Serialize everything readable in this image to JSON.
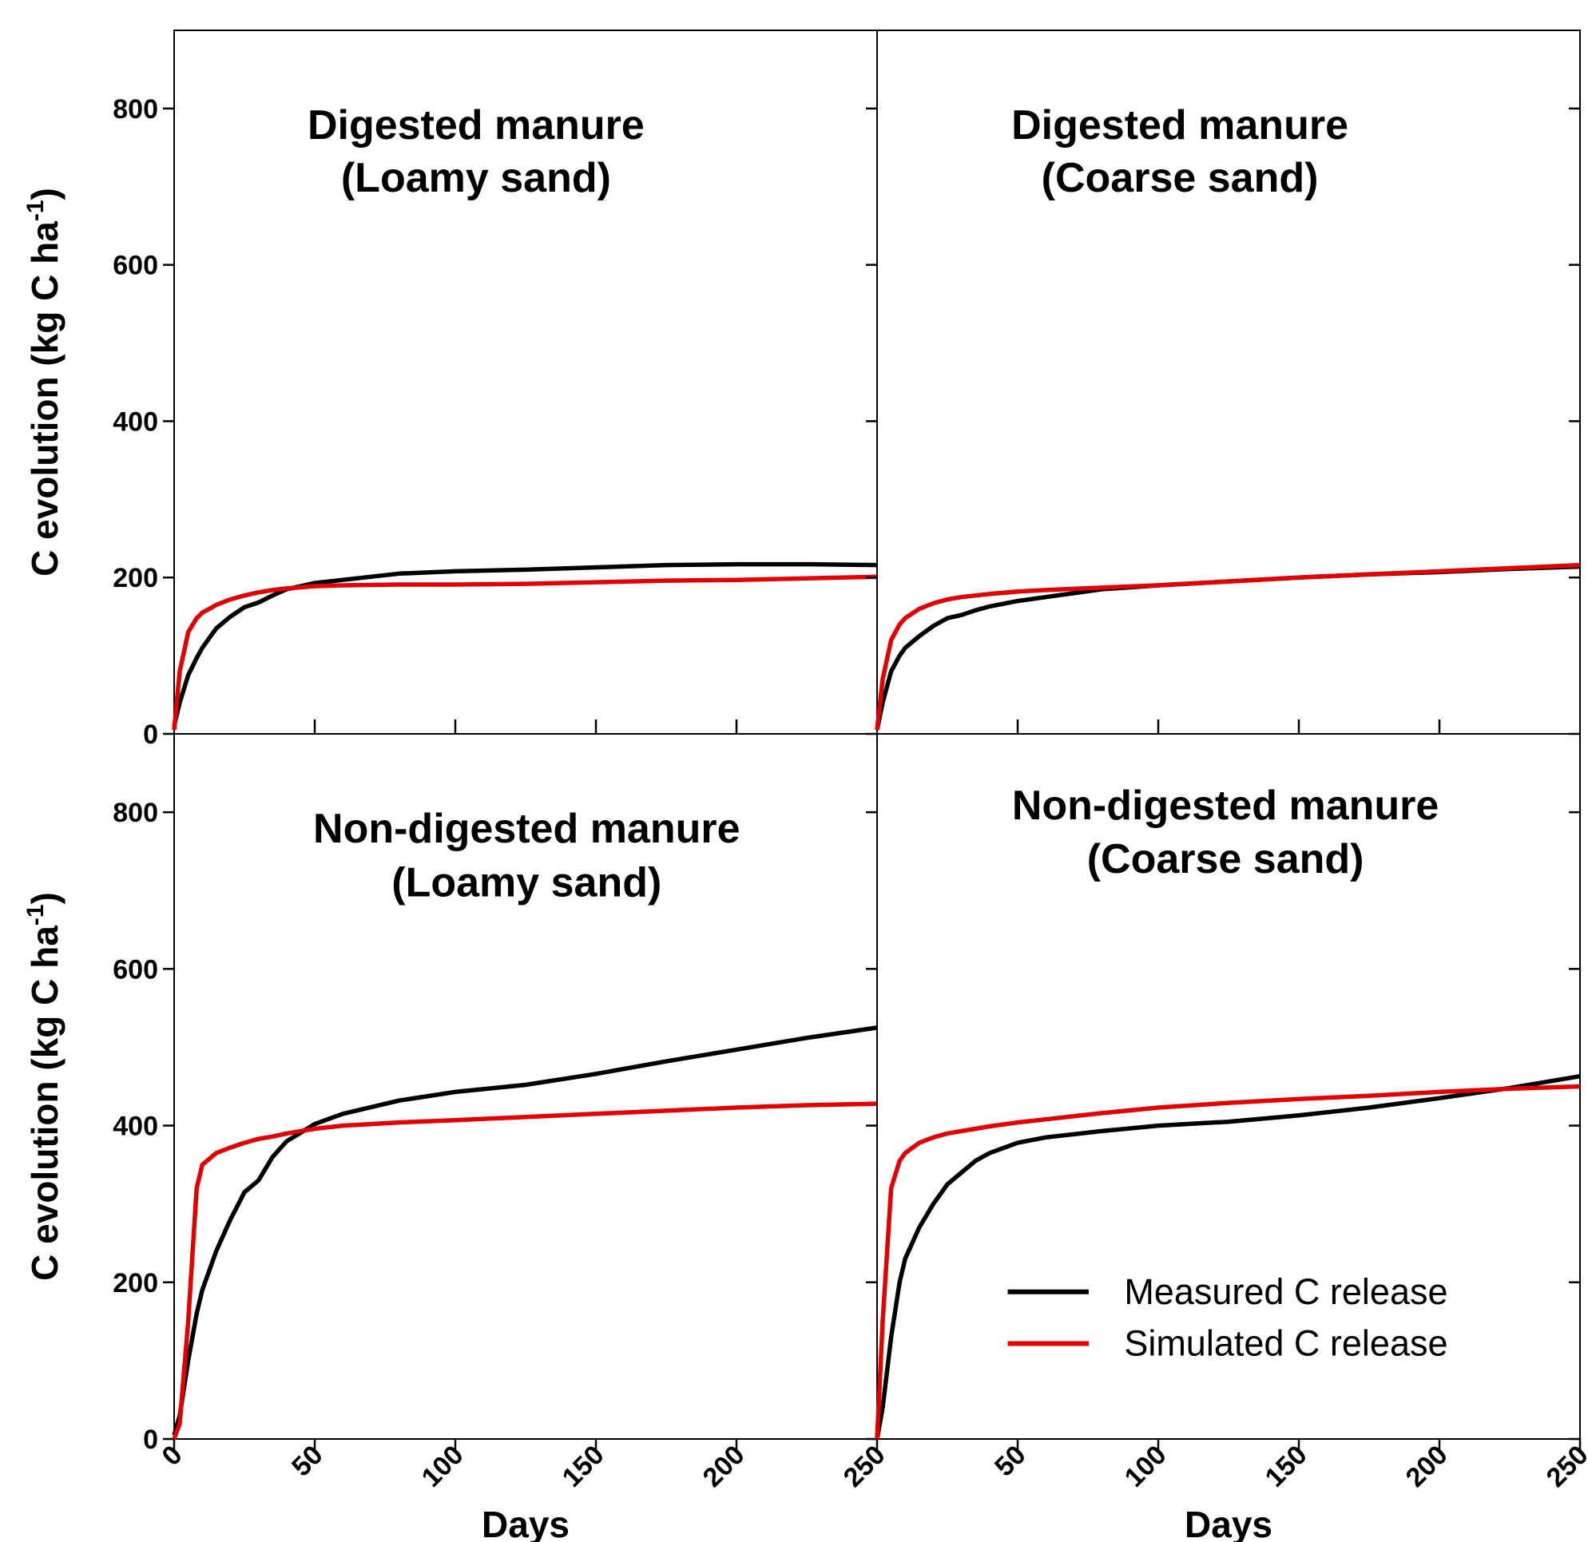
{
  "chart_data": [
    {
      "type": "line",
      "title": [
        "Digested manure",
        "(Loamy sand)"
      ],
      "ylabel": "C evolution (kg C ha",
      "ylabel_sup": "-1",
      "ylabel_end": ")",
      "xlim": [
        0,
        250
      ],
      "ylim": [
        0,
        900
      ],
      "xticks": [
        50,
        100,
        150,
        200
      ],
      "yticks": [
        0,
        200,
        400,
        600,
        800
      ],
      "ytick_labels": true,
      "xtick_labels": false,
      "x": [
        0,
        2,
        5,
        8,
        10,
        15,
        20,
        25,
        30,
        35,
        40,
        50,
        60,
        80,
        100,
        125,
        150,
        175,
        200,
        225,
        250
      ],
      "series": [
        {
          "color": "#000000",
          "values": [
            10,
            40,
            75,
            97,
            110,
            135,
            150,
            162,
            168,
            177,
            185,
            193,
            197,
            205,
            208,
            210,
            213,
            216,
            217,
            217,
            216
          ]
        },
        {
          "color": "#e00000",
          "values": [
            5,
            80,
            130,
            148,
            155,
            165,
            172,
            177,
            181,
            184,
            186,
            189,
            190,
            191,
            191,
            192,
            194,
            196,
            197,
            199,
            201
          ]
        }
      ]
    },
    {
      "type": "line",
      "title": [
        "Digested manure",
        "(Coarse sand)"
      ],
      "xlim": [
        0,
        250
      ],
      "ylim": [
        0,
        900
      ],
      "xticks": [
        50,
        100,
        150,
        200
      ],
      "yticks": [
        0,
        200,
        400,
        600,
        800
      ],
      "ytick_labels": false,
      "xtick_labels": false,
      "x": [
        0,
        2,
        5,
        8,
        10,
        15,
        20,
        25,
        30,
        35,
        40,
        50,
        60,
        80,
        100,
        125,
        150,
        175,
        200,
        225,
        250
      ],
      "series": [
        {
          "color": "#000000",
          "values": [
            5,
            40,
            80,
            100,
            110,
            125,
            138,
            148,
            152,
            158,
            163,
            170,
            175,
            185,
            190,
            195,
            200,
            204,
            207,
            211,
            214
          ]
        },
        {
          "color": "#e00000",
          "values": [
            5,
            70,
            120,
            140,
            148,
            160,
            167,
            172,
            175,
            177,
            179,
            182,
            184,
            187,
            190,
            195,
            200,
            204,
            208,
            212,
            216
          ]
        }
      ]
    },
    {
      "type": "line",
      "title": [
        "Non-digested manure",
        "(Loamy sand)"
      ],
      "ylabel": "C evolution (kg C ha",
      "ylabel_sup": "-1",
      "ylabel_end": ")",
      "xlabel": "Days",
      "xlim": [
        0,
        250
      ],
      "ylim": [
        0,
        900
      ],
      "xticks": [
        0,
        50,
        100,
        150,
        200,
        250
      ],
      "yticks": [
        0,
        200,
        400,
        600,
        800
      ],
      "ytick_labels": true,
      "xtick_labels": true,
      "x": [
        0,
        2,
        5,
        8,
        10,
        15,
        20,
        25,
        30,
        35,
        40,
        50,
        60,
        80,
        100,
        125,
        150,
        175,
        200,
        225,
        250
      ],
      "series": [
        {
          "color": "#000000",
          "values": [
            5,
            30,
            100,
            160,
            190,
            240,
            280,
            315,
            330,
            360,
            380,
            402,
            415,
            432,
            443,
            452,
            466,
            482,
            497,
            512,
            525
          ]
        },
        {
          "color": "#e00000",
          "values": [
            0,
            20,
            150,
            320,
            350,
            365,
            372,
            378,
            383,
            386,
            390,
            396,
            400,
            404,
            407,
            411,
            415,
            419,
            423,
            426,
            428
          ]
        }
      ]
    },
    {
      "type": "line",
      "title": [
        "Non-digested manure",
        "(Coarse sand)"
      ],
      "xlabel": "Days",
      "xlim": [
        0,
        250
      ],
      "ylim": [
        0,
        900
      ],
      "xticks": [
        50,
        100,
        150,
        200,
        250
      ],
      "yticks": [
        0,
        200,
        400,
        600,
        800
      ],
      "ytick_labels": false,
      "xtick_labels": true,
      "legend": "lower right",
      "x": [
        0,
        2,
        5,
        8,
        10,
        15,
        20,
        25,
        30,
        35,
        40,
        50,
        60,
        80,
        100,
        125,
        150,
        175,
        200,
        225,
        250
      ],
      "series": [
        {
          "name": "Measured C release",
          "color": "#000000",
          "values": [
            0,
            40,
            130,
            200,
            230,
            270,
            300,
            325,
            340,
            355,
            365,
            378,
            385,
            393,
            400,
            405,
            413,
            423,
            435,
            448,
            463
          ]
        },
        {
          "name": "Simulated C release",
          "color": "#e00000",
          "values": [
            0,
            150,
            320,
            355,
            365,
            378,
            385,
            390,
            393,
            396,
            399,
            404,
            408,
            416,
            423,
            429,
            434,
            438,
            443,
            447,
            450
          ]
        }
      ]
    }
  ]
}
